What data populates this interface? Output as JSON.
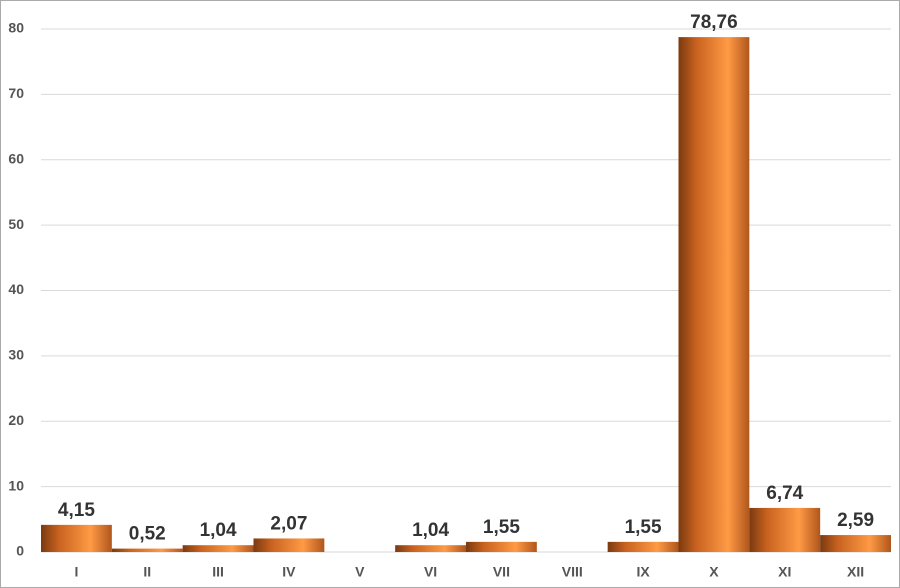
{
  "chart_data": {
    "type": "bar",
    "categories": [
      "I",
      "II",
      "III",
      "IV",
      "V",
      "VI",
      "VII",
      "VIII",
      "IX",
      "X",
      "XI",
      "XII"
    ],
    "values": [
      4.15,
      0.52,
      1.04,
      2.07,
      null,
      1.04,
      1.55,
      null,
      1.55,
      78.76,
      6.74,
      2.59
    ],
    "value_labels": [
      "4,15",
      "0,52",
      "1,04",
      "2,07",
      null,
      "1,04",
      "1,55",
      null,
      "1,55",
      "78,76",
      "6,74",
      "2,59"
    ],
    "color": "#e8782a",
    "ylim": [
      0,
      80
    ],
    "yticks": [
      0,
      10,
      20,
      30,
      40,
      50,
      60,
      70,
      80
    ],
    "grid": true
  }
}
